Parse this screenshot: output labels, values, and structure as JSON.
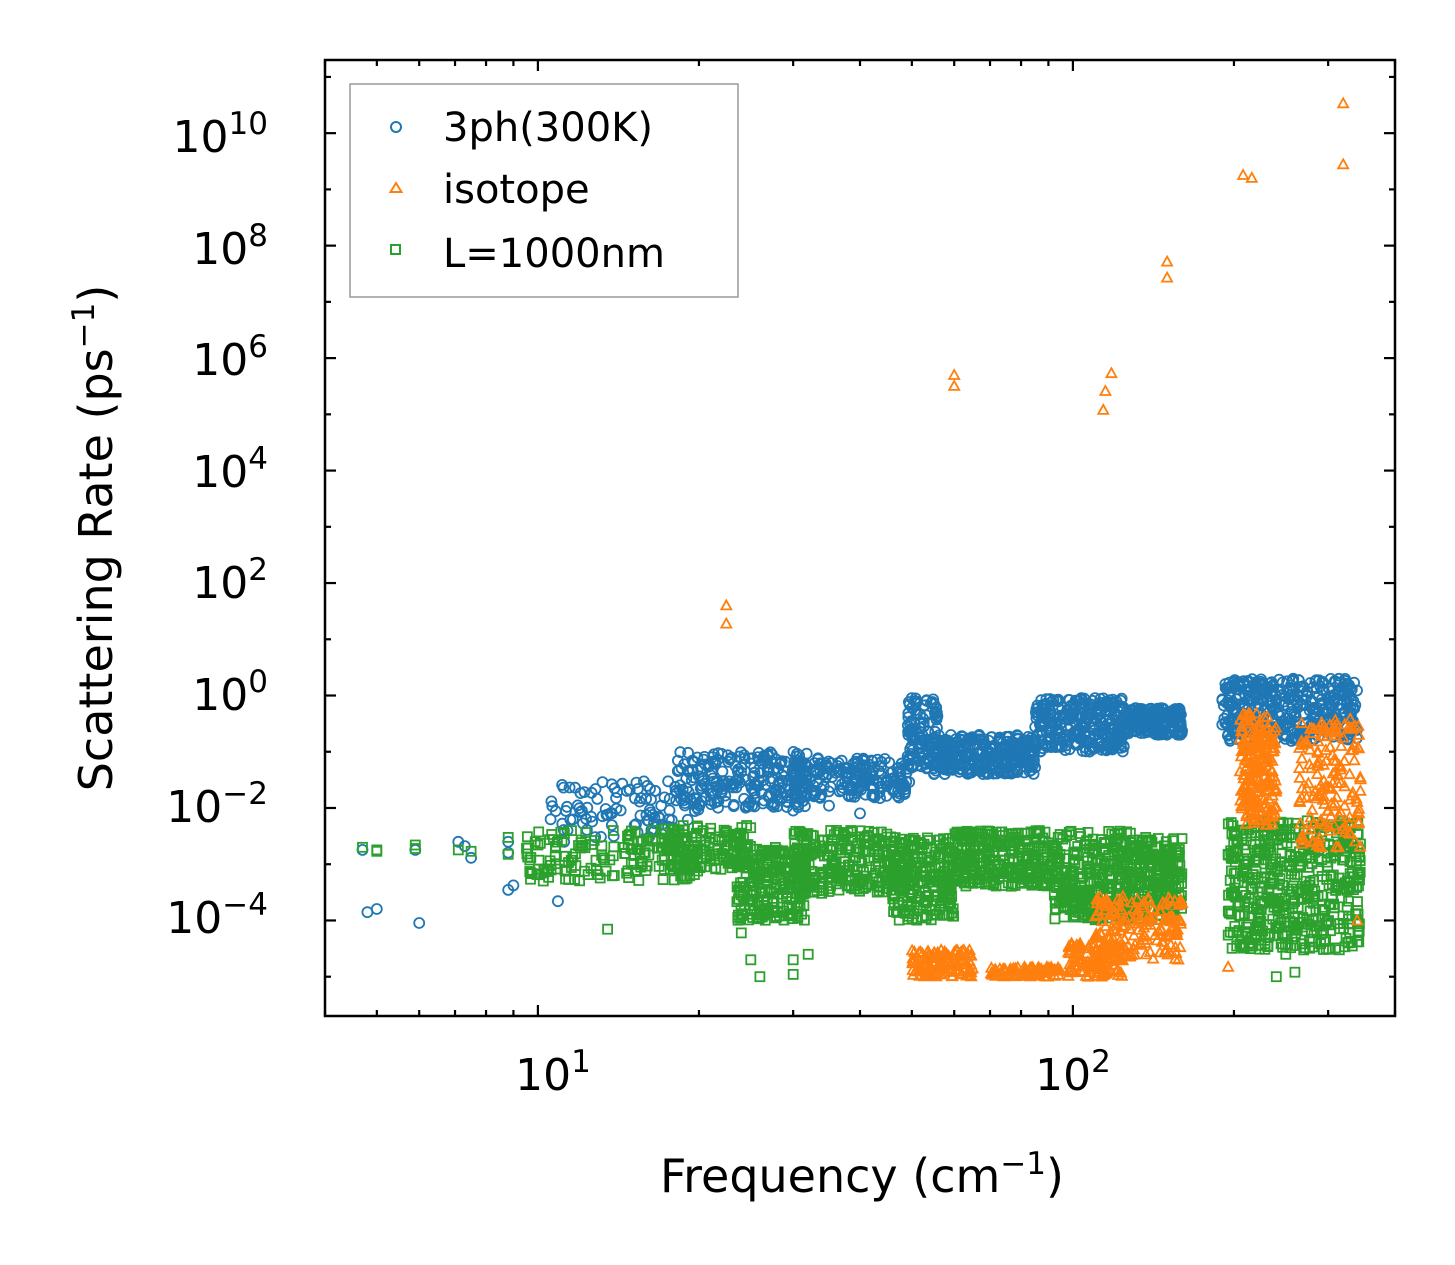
{
  "chart_data": {
    "type": "scatter",
    "xscale": "log",
    "yscale": "log",
    "xlabel": "Frequency",
    "xlabel_unit": "cm",
    "xlabel_exp": "−1",
    "ylabel": "Scattering Rate",
    "ylabel_unit": "ps",
    "ylabel_exp": "−1",
    "xlim": [
      4.0,
      400
    ],
    "ylim": [
      2e-06,
      200000000000
    ],
    "x_ticks": [
      {
        "base": "10",
        "exp": "1",
        "value": 10
      },
      {
        "base": "10",
        "exp": "2",
        "value": 100
      }
    ],
    "y_ticks": [
      {
        "base": "10",
        "exp": "10",
        "value": 10000000000
      },
      {
        "base": "10",
        "exp": "8",
        "value": 100000000
      },
      {
        "base": "10",
        "exp": "6",
        "value": 1000000
      },
      {
        "base": "10",
        "exp": "4",
        "value": 10000
      },
      {
        "base": "10",
        "exp": "2",
        "value": 100
      },
      {
        "base": "10",
        "exp": "0",
        "value": 1
      },
      {
        "base": "10",
        "exp": "−2",
        "value": 0.01
      },
      {
        "base": "10",
        "exp": "−4",
        "value": 0.0001
      }
    ],
    "legend_position": "top-left",
    "series": [
      {
        "name": "3ph(300K)",
        "marker": "circle",
        "color": "#1f77b4",
        "points": [
          [
            4.7,
            0.0018
          ],
          [
            4.8,
            0.00014
          ],
          [
            5.0,
            0.00016
          ],
          [
            5.9,
            0.0018
          ],
          [
            6.0,
            9e-05
          ],
          [
            7.1,
            0.0025
          ],
          [
            7.3,
            0.0021
          ],
          [
            7.5,
            0.0013
          ],
          [
            8.8,
            0.0025
          ],
          [
            8.8,
            0.0016
          ],
          [
            8.8,
            0.00035
          ],
          [
            9.0,
            0.00042
          ],
          [
            10.8,
            0.0088
          ],
          [
            10.9,
            0.00022
          ],
          [
            11.2,
            0.0025
          ],
          [
            11.5,
            0.0062
          ],
          [
            12.0,
            0.0085
          ],
          [
            13.5,
            0.0075
          ],
          [
            14.0,
            0.015
          ],
          [
            15.5,
            0.013
          ],
          [
            17.0,
            0.011
          ],
          [
            20.0,
            0.012
          ],
          [
            22.0,
            0.018
          ],
          [
            30.0,
            0.009
          ],
          [
            35.0,
            0.011
          ],
          [
            40.0,
            0.008
          ],
          [
            55.0,
            0.04
          ],
          [
            50.0,
            0.9
          ]
        ],
        "bands": [
          {
            "x_range": [
              10.5,
              20
            ],
            "y_range": [
              0.003,
              0.03
            ],
            "n": 90
          },
          {
            "x_range": [
              18,
              32
            ],
            "y_range": [
              0.01,
              0.1
            ],
            "n": 240
          },
          {
            "x_range": [
              30,
              50
            ],
            "y_range": [
              0.015,
              0.08
            ],
            "n": 220
          },
          {
            "x_range": [
              49,
              56
            ],
            "y_range": [
              0.05,
              0.9
            ],
            "n": 120
          },
          {
            "x_range": [
              55,
              85
            ],
            "y_range": [
              0.04,
              0.2
            ],
            "n": 300
          },
          {
            "x_range": [
              85,
              125
            ],
            "y_range": [
              0.1,
              0.9
            ],
            "n": 300
          },
          {
            "x_range": [
              125,
              160
            ],
            "y_range": [
              0.2,
              0.6
            ],
            "n": 220
          },
          {
            "x_range": [
              190,
              340
            ],
            "y_range": [
              0.15,
              2.0
            ],
            "n": 420
          }
        ]
      },
      {
        "name": "isotope",
        "marker": "triangle",
        "color": "#ff7f0e",
        "points": [
          [
            22.5,
            40
          ],
          [
            22.5,
            19
          ],
          [
            60,
            500000
          ],
          [
            60,
            320000
          ],
          [
            114,
            120000
          ],
          [
            115,
            260000
          ],
          [
            118,
            540000
          ],
          [
            150,
            52000000
          ],
          [
            150,
            27000000
          ],
          [
            208,
            1800000000
          ],
          [
            216,
            1600000000
          ],
          [
            320,
            34000000000
          ],
          [
            320,
            2800000000
          ],
          [
            195,
            1.5e-05
          ],
          [
            340,
            0.0001
          ]
        ],
        "bands": [
          {
            "x_range": [
              50,
              65
            ],
            "y_range": [
              1e-05,
              3e-05
            ],
            "n": 120
          },
          {
            "x_range": [
              70,
              95
            ],
            "y_range": [
              1e-05,
              1.5e-05
            ],
            "n": 90
          },
          {
            "x_range": [
              98,
              125
            ],
            "y_range": [
              1e-05,
              4e-05
            ],
            "n": 120
          },
          {
            "x_range": [
              110,
              160
            ],
            "y_range": [
              2e-05,
              0.0003
            ],
            "n": 180
          },
          {
            "x_range": [
              205,
              240
            ],
            "y_range": [
              0.005,
              0.5
            ],
            "n": 220
          },
          {
            "x_range": [
              265,
              345
            ],
            "y_range": [
              0.002,
              0.4
            ],
            "n": 160
          }
        ]
      },
      {
        "name": "L=1000nm",
        "marker": "square",
        "color": "#2ca02c",
        "points": [
          [
            4.7,
            0.002
          ],
          [
            5.0,
            0.0018
          ],
          [
            5.0,
            0.0017
          ],
          [
            5.9,
            0.0022
          ],
          [
            5.9,
            0.0019
          ],
          [
            7.1,
            0.0018
          ],
          [
            7.5,
            0.0017
          ],
          [
            8.8,
            0.003
          ],
          [
            8.8,
            0.0015
          ],
          [
            13.5,
            7e-05
          ],
          [
            24.0,
            6e-05
          ],
          [
            25.0,
            2e-05
          ],
          [
            26.0,
            1e-05
          ],
          [
            30.0,
            2e-05
          ],
          [
            30.0,
            1.1e-05
          ],
          [
            32.0,
            2.5e-05
          ],
          [
            195,
            0.0015
          ],
          [
            228,
            0.0012
          ],
          [
            240,
            1e-05
          ],
          [
            250,
            2.5e-05
          ],
          [
            260,
            1.2e-05
          ],
          [
            270,
            3e-05
          ],
          [
            335,
            0.0006
          ]
        ],
        "bands": [
          {
            "x_range": [
              9.5,
              20
            ],
            "y_range": [
              0.0005,
              0.004
            ],
            "n": 160
          },
          {
            "x_range": [
              17,
              25
            ],
            "y_range": [
              0.0008,
              0.005
            ],
            "n": 150
          },
          {
            "x_range": [
              23.5,
              32
            ],
            "y_range": [
              0.0001,
              0.002
            ],
            "n": 260
          },
          {
            "x_range": [
              30,
              48
            ],
            "y_range": [
              0.0003,
              0.004
            ],
            "n": 260
          },
          {
            "x_range": [
              46,
              60
            ],
            "y_range": [
              0.0001,
              0.003
            ],
            "n": 240
          },
          {
            "x_range": [
              60,
              92
            ],
            "y_range": [
              0.0004,
              0.004
            ],
            "n": 300
          },
          {
            "x_range": [
              92,
              130
            ],
            "y_range": [
              0.0001,
              0.004
            ],
            "n": 320
          },
          {
            "x_range": [
              128,
              160
            ],
            "y_range": [
              0.0001,
              0.003
            ],
            "n": 220
          },
          {
            "x_range": [
              195,
              345
            ],
            "y_range": [
              3e-05,
              0.006
            ],
            "n": 520
          }
        ]
      }
    ]
  }
}
